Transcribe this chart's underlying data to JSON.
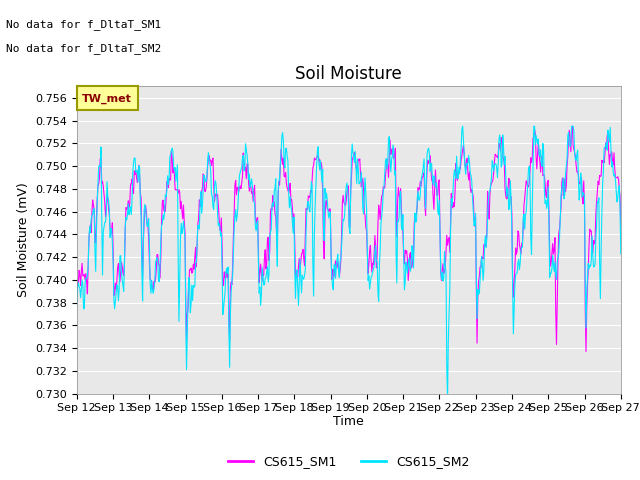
{
  "title": "Soil Moisture",
  "ylabel": "Soil Moisture (mV)",
  "xlabel": "Time",
  "ylim": [
    0.73,
    0.757
  ],
  "yticks": [
    0.73,
    0.732,
    0.734,
    0.736,
    0.738,
    0.74,
    0.742,
    0.744,
    0.746,
    0.748,
    0.75,
    0.752,
    0.754,
    0.756
  ],
  "xtick_labels": [
    "Sep 12",
    "Sep 13",
    "Sep 14",
    "Sep 15",
    "Sep 16",
    "Sep 17",
    "Sep 18",
    "Sep 19",
    "Sep 20",
    "Sep 21",
    "Sep 22",
    "Sep 23",
    "Sep 24",
    "Sep 25",
    "Sep 26",
    "Sep 27"
  ],
  "color_sm1": "#FF00FF",
  "color_sm2": "#00E5FF",
  "legend_sm1": "CS615_SM1",
  "legend_sm2": "CS615_SM2",
  "annotation_line1": "No data for f_DltaT_SM1",
  "annotation_line2": "No data for f_DltaT_SM2",
  "legend2_label": "TW_met",
  "legend2_facecolor": "#FFFF99",
  "legend2_edgecolor": "#999900",
  "background_color": "#E8E8E8",
  "grid_color": "#FFFFFF",
  "title_fontsize": 12,
  "axis_fontsize": 9,
  "tick_fontsize": 8,
  "annotation_fontsize": 8
}
